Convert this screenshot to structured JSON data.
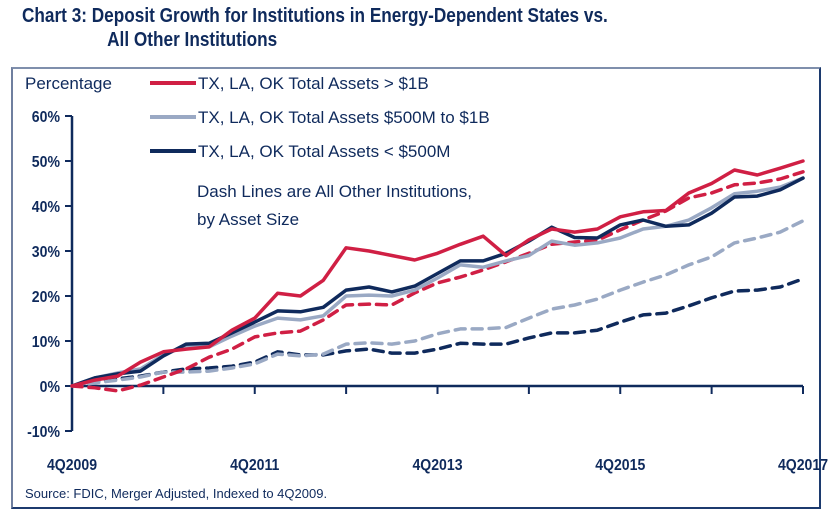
{
  "chart_data": {
    "type": "line",
    "title": "Chart 3: Deposit Growth for Institutions in Energy-Dependent States vs.",
    "title_line2": "All Other Institutions",
    "ylabel": "Percentage",
    "xlabel": "",
    "ylim": [
      -10,
      60
    ],
    "yticks": [
      60,
      50,
      40,
      30,
      20,
      10,
      0,
      -10
    ],
    "ytick_labels": [
      "60%",
      "50%",
      "40%",
      "30%",
      "20%",
      "10%",
      "0%",
      "-10%"
    ],
    "x_count": 33,
    "xtick_positions": [
      0,
      4,
      8,
      12,
      16,
      20,
      24,
      28,
      32
    ],
    "xlabel_positions": [
      0,
      8,
      16,
      24,
      32
    ],
    "xtick_labels": [
      "4Q2009",
      "4Q2011",
      "4Q2013",
      "4Q2015",
      "4Q2017"
    ],
    "grid": false,
    "legend_placement": "top-left",
    "legend_note": [
      "Dash Lines are All Other Institutions,",
      "by Asset Size"
    ],
    "source": "Source: FDIC, Merger Adjusted, Indexed to 4Q2009.",
    "series": [
      {
        "name": "All Other Total Assets < $500M",
        "legend": false,
        "color": "#0f2a5c",
        "dashed": true,
        "values": [
          0,
          0.9,
          1.6,
          2.2,
          3.1,
          3.8,
          4.0,
          4.4,
          5.3,
          7.6,
          6.9,
          6.9,
          7.8,
          8.2,
          7.3,
          7.3,
          8.2,
          9.5,
          9.3,
          9.3,
          10.7,
          11.8,
          11.8,
          12.4,
          14.2,
          15.8,
          16.2,
          17.8,
          19.6,
          21.1,
          21.3,
          22.0,
          23.8
        ]
      },
      {
        "name": "All Other Total Assets $500M to $1B",
        "legend": false,
        "color": "#9aa9c4",
        "dashed": true,
        "values": [
          0,
          0.7,
          1.3,
          2.0,
          3.1,
          3.1,
          3.3,
          4.0,
          4.9,
          7.1,
          6.7,
          7.1,
          9.3,
          9.6,
          9.3,
          10.0,
          11.6,
          12.7,
          12.7,
          13.0,
          15.1,
          17.1,
          18.0,
          19.3,
          21.3,
          23.1,
          24.7,
          26.9,
          28.7,
          31.8,
          32.9,
          34.2,
          36.7
        ]
      },
      {
        "name": "All Other Total Assets > $1B",
        "legend": false,
        "color": "#d01f44",
        "dashed": true,
        "values": [
          0,
          -0.4,
          -1.1,
          0.2,
          2.0,
          3.8,
          6.4,
          8.2,
          10.9,
          11.8,
          12.2,
          14.7,
          18.0,
          18.2,
          18.0,
          20.7,
          22.9,
          24.2,
          25.8,
          27.6,
          29.5,
          31.5,
          32.0,
          32.4,
          34.7,
          36.9,
          38.9,
          41.8,
          42.9,
          44.7,
          45.1,
          46.0,
          47.6
        ]
      },
      {
        "name": "TX, LA, OK Total Assets $500M to $1B",
        "legend": true,
        "color": "#9aa9c4",
        "dashed": false,
        "values": [
          0,
          1.8,
          2.9,
          3.8,
          6.9,
          8.9,
          8.7,
          11.1,
          13.3,
          15.1,
          14.7,
          15.6,
          20.0,
          20.2,
          20.0,
          21.3,
          24.0,
          26.9,
          26.4,
          27.8,
          29.0,
          32.2,
          31.3,
          31.8,
          32.9,
          34.9,
          35.5,
          36.9,
          39.6,
          42.7,
          43.3,
          44.2,
          46.2
        ]
      },
      {
        "name": "TX, LA, OK Total Assets < $500M",
        "legend": true,
        "color": "#0f2a5c",
        "dashed": false,
        "values": [
          0,
          1.8,
          2.7,
          3.3,
          6.7,
          9.3,
          9.5,
          11.8,
          14.2,
          16.7,
          16.5,
          17.5,
          21.3,
          22.0,
          20.9,
          22.2,
          25.0,
          27.8,
          27.8,
          29.5,
          32.2,
          35.3,
          33.0,
          32.9,
          35.8,
          36.9,
          35.5,
          35.8,
          38.4,
          42.0,
          42.2,
          43.6,
          46.2
        ]
      },
      {
        "name": "TX, LA, OK Total Assets > $1B",
        "legend": true,
        "color": "#d01f44",
        "dashed": false,
        "values": [
          0,
          1.3,
          2.2,
          5.3,
          7.6,
          8.2,
          8.7,
          12.4,
          15.1,
          20.6,
          20.0,
          23.5,
          30.7,
          30.0,
          29.0,
          28.0,
          29.5,
          31.5,
          33.3,
          29.0,
          32.5,
          34.9,
          34.2,
          34.9,
          37.6,
          38.7,
          39.0,
          42.9,
          45.0,
          48.0,
          46.9,
          48.4,
          50.0
        ]
      }
    ],
    "legend_order": [
      5,
      3,
      4
    ]
  }
}
